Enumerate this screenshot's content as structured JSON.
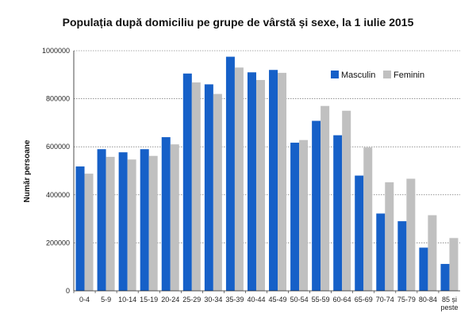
{
  "chart_data": {
    "type": "bar",
    "title": "Populația după domiciliu pe grupe de vârstă și sexe, la 1 iulie 2015",
    "ylabel": "Număr persoane",
    "xlabel": "",
    "ylim": [
      0,
      1000000
    ],
    "yticks": [
      "0",
      "200000",
      "400000",
      "600000",
      "800000",
      "1000000"
    ],
    "ytick_values": [
      0,
      200000,
      400000,
      600000,
      800000,
      1000000
    ],
    "grid": true,
    "legend_position": "top-right",
    "categories": [
      "0-4",
      "5-9",
      "10-14",
      "15-19",
      "20-24",
      "25-29",
      "30-34",
      "35-39",
      "40-44",
      "45-49",
      "50-54",
      "55-59",
      "60-64",
      "65-69",
      "70-74",
      "75-79",
      "80-84",
      "85 și peste"
    ],
    "series": [
      {
        "name": "Masculin",
        "color": "#1660c8",
        "values": [
          518000,
          590000,
          577000,
          590000,
          640000,
          905000,
          860000,
          975000,
          910000,
          920000,
          617000,
          708000,
          648000,
          480000,
          322000,
          290000,
          180000,
          112000
        ]
      },
      {
        "name": "Feminin",
        "color": "#c0c0c0",
        "values": [
          488000,
          558000,
          547000,
          562000,
          610000,
          868000,
          820000,
          930000,
          878000,
          908000,
          628000,
          770000,
          750000,
          597000,
          452000,
          467000,
          315000,
          220000
        ]
      }
    ]
  }
}
